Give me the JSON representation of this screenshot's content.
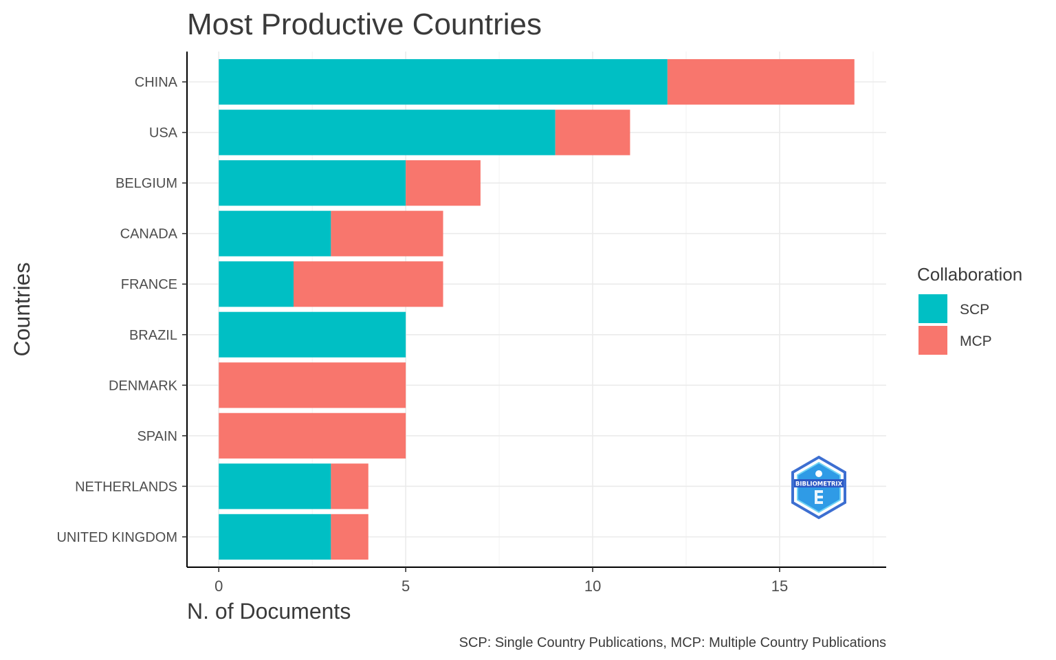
{
  "chart_data": {
    "type": "bar",
    "orientation": "horizontal",
    "stacked": true,
    "title": "Most Productive Countries",
    "xlabel": "N. of Documents",
    "ylabel": "Countries",
    "caption": "SCP: Single Country Publications, MCP: Multiple Country Publications",
    "categories": [
      "CHINA",
      "USA",
      "BELGIUM",
      "CANADA",
      "FRANCE",
      "BRAZIL",
      "DENMARK",
      "SPAIN",
      "NETHERLANDS",
      "UNITED KINGDOM"
    ],
    "series": [
      {
        "name": "SCP",
        "color": "#00BFC4",
        "values": [
          12,
          9,
          5,
          3,
          2,
          5,
          0,
          0,
          3,
          3
        ]
      },
      {
        "name": "MCP",
        "color": "#F8766D",
        "values": [
          5,
          2,
          2,
          3,
          4,
          0,
          5,
          5,
          1,
          1
        ]
      }
    ],
    "xticks": [
      0,
      5,
      10,
      15
    ],
    "xlim": [
      -0.85,
      17.85
    ],
    "legend": {
      "title": "Collaboration",
      "position": "right"
    },
    "grid": true,
    "logo_text": "BIBLIOMETRIX"
  }
}
